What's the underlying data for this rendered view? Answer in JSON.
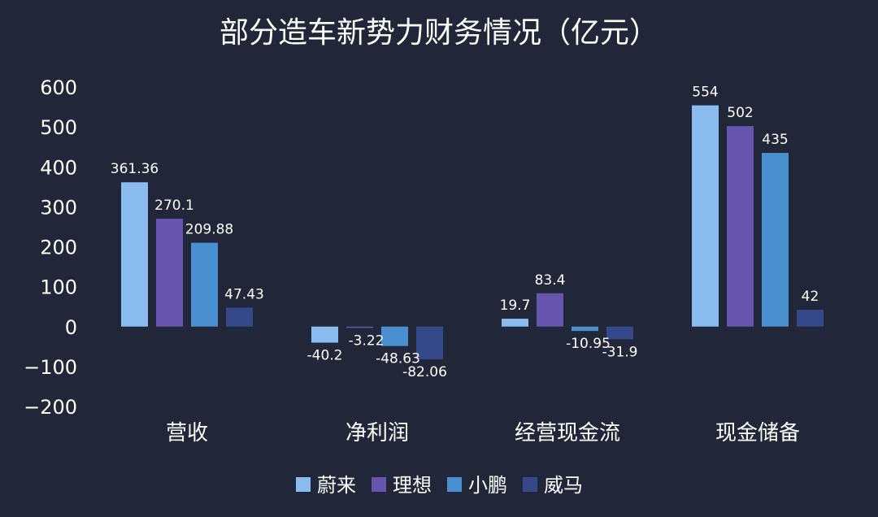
{
  "chart_data": {
    "type": "bar",
    "title": "部分造车新势力财务情况（亿元）",
    "categories": [
      "营收",
      "净利润",
      "经营现金流",
      "现金储备"
    ],
    "series": [
      {
        "name": "蔚来",
        "color": "#8bbcf0",
        "values": [
          361.36,
          -40.2,
          19.7,
          554
        ],
        "labels": [
          "361.36",
          "-40.2",
          "19.7",
          "554"
        ]
      },
      {
        "name": "理想",
        "color": "#6555ae",
        "values": [
          270.1,
          -3.22,
          83.4,
          502
        ],
        "labels": [
          "270.1",
          "-3.22",
          "83.4",
          "502"
        ]
      },
      {
        "name": "小鹏",
        "color": "#4a8fcf",
        "values": [
          209.88,
          -48.63,
          -10.95,
          435
        ],
        "labels": [
          "209.88",
          "-48.63",
          "-10.95",
          "435"
        ]
      },
      {
        "name": "威马",
        "color": "#34488a",
        "values": [
          47.43,
          -82.06,
          -31.9,
          42
        ],
        "labels": [
          "47.43",
          "-82.06",
          "-31.9",
          "42"
        ]
      }
    ],
    "ylim": [
      -200,
      600
    ],
    "yticks": [
      "600",
      "500",
      "400",
      "300",
      "200",
      "100",
      "0",
      "−100",
      "−200"
    ],
    "ytick_values": [
      600,
      500,
      400,
      300,
      200,
      100,
      0,
      -100,
      -200
    ],
    "grid": false,
    "legend_position": "bottom"
  }
}
